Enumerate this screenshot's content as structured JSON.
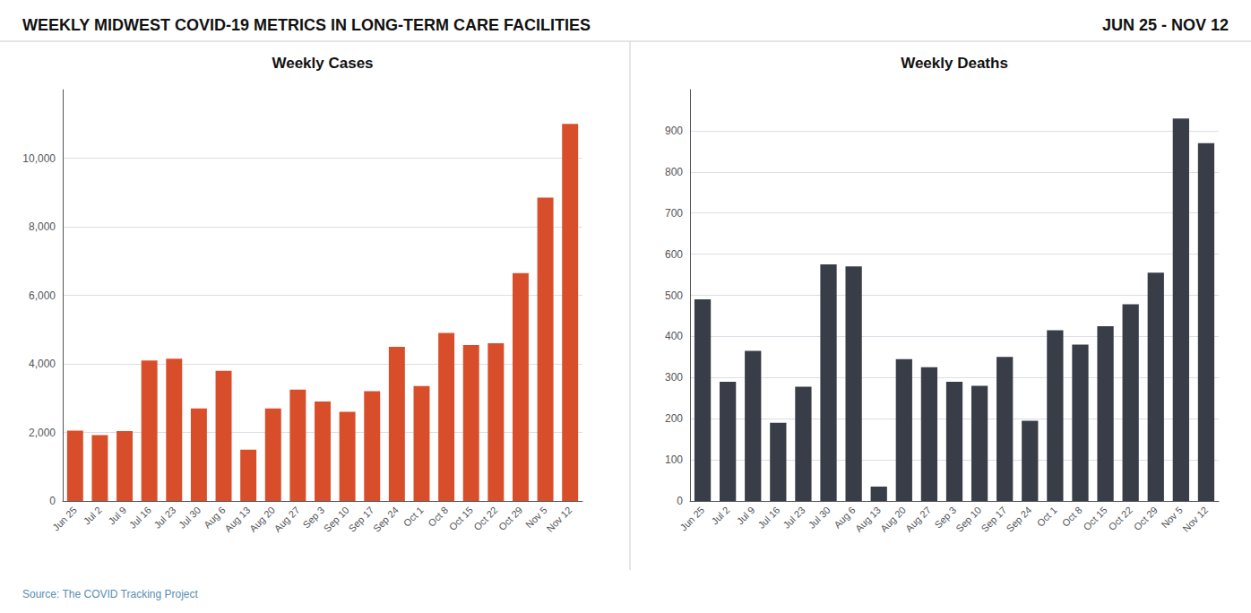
{
  "title": "WEEKLY MIDWEST COVID-19 METRICS IN LONG-TERM CARE FACILITIES",
  "annotations": [
    "JUN 25 - NOV 12",
    "Source: The COVID Tracking Project"
  ],
  "chart_data": [
    {
      "type": "bar",
      "title": "Weekly Cases",
      "categories": [
        "Jun 25",
        "Jul 2",
        "Jul 9",
        "Jul 16",
        "Jul 23",
        "Jul 30",
        "Aug 6",
        "Aug 13",
        "Aug 20",
        "Aug 27",
        "Sep 3",
        "Sep 10",
        "Sep 17",
        "Sep 24",
        "Oct 1",
        "Oct 8",
        "Oct 15",
        "Oct 22",
        "Oct 29",
        "Nov 5",
        "Nov 12"
      ],
      "values": [
        2050,
        1920,
        2040,
        4100,
        4150,
        2700,
        3800,
        1500,
        2700,
        3250,
        2900,
        2600,
        3200,
        4500,
        3350,
        4900,
        4550,
        4600,
        6650,
        8850,
        11000
      ],
      "color": "#D94E2A",
      "ylim": [
        0,
        12000
      ],
      "yticks": [
        0,
        {
          "value": 2000,
          "label": "2,000"
        },
        {
          "value": 4000,
          "label": "4,000"
        },
        {
          "value": 6000,
          "label": "6,000"
        },
        {
          "value": 8000,
          "label": "8,000"
        },
        {
          "value": 10000,
          "label": "10,000"
        }
      ],
      "grid": true
    },
    {
      "type": "bar",
      "title": "Weekly Deaths",
      "categories": [
        "Jun 25",
        "Jul 2",
        "Jul 9",
        "Jul 16",
        "Jul 23",
        "Jul 30",
        "Aug 6",
        "Aug 13",
        "Aug 20",
        "Aug 27",
        "Sep 3",
        "Sep 10",
        "Sep 17",
        "Sep 24",
        "Oct 1",
        "Oct 8",
        "Oct 15",
        "Oct 22",
        "Oct 29",
        "Nov 5",
        "Nov 12"
      ],
      "values": [
        490,
        290,
        365,
        190,
        278,
        575,
        570,
        35,
        345,
        325,
        290,
        280,
        350,
        195,
        415,
        380,
        425,
        478,
        555,
        930,
        870
      ],
      "color": "#383D47",
      "ylim": [
        0,
        1000
      ],
      "yticks": [
        0,
        100,
        200,
        300,
        400,
        500,
        600,
        700,
        800,
        900
      ],
      "grid": true
    }
  ]
}
